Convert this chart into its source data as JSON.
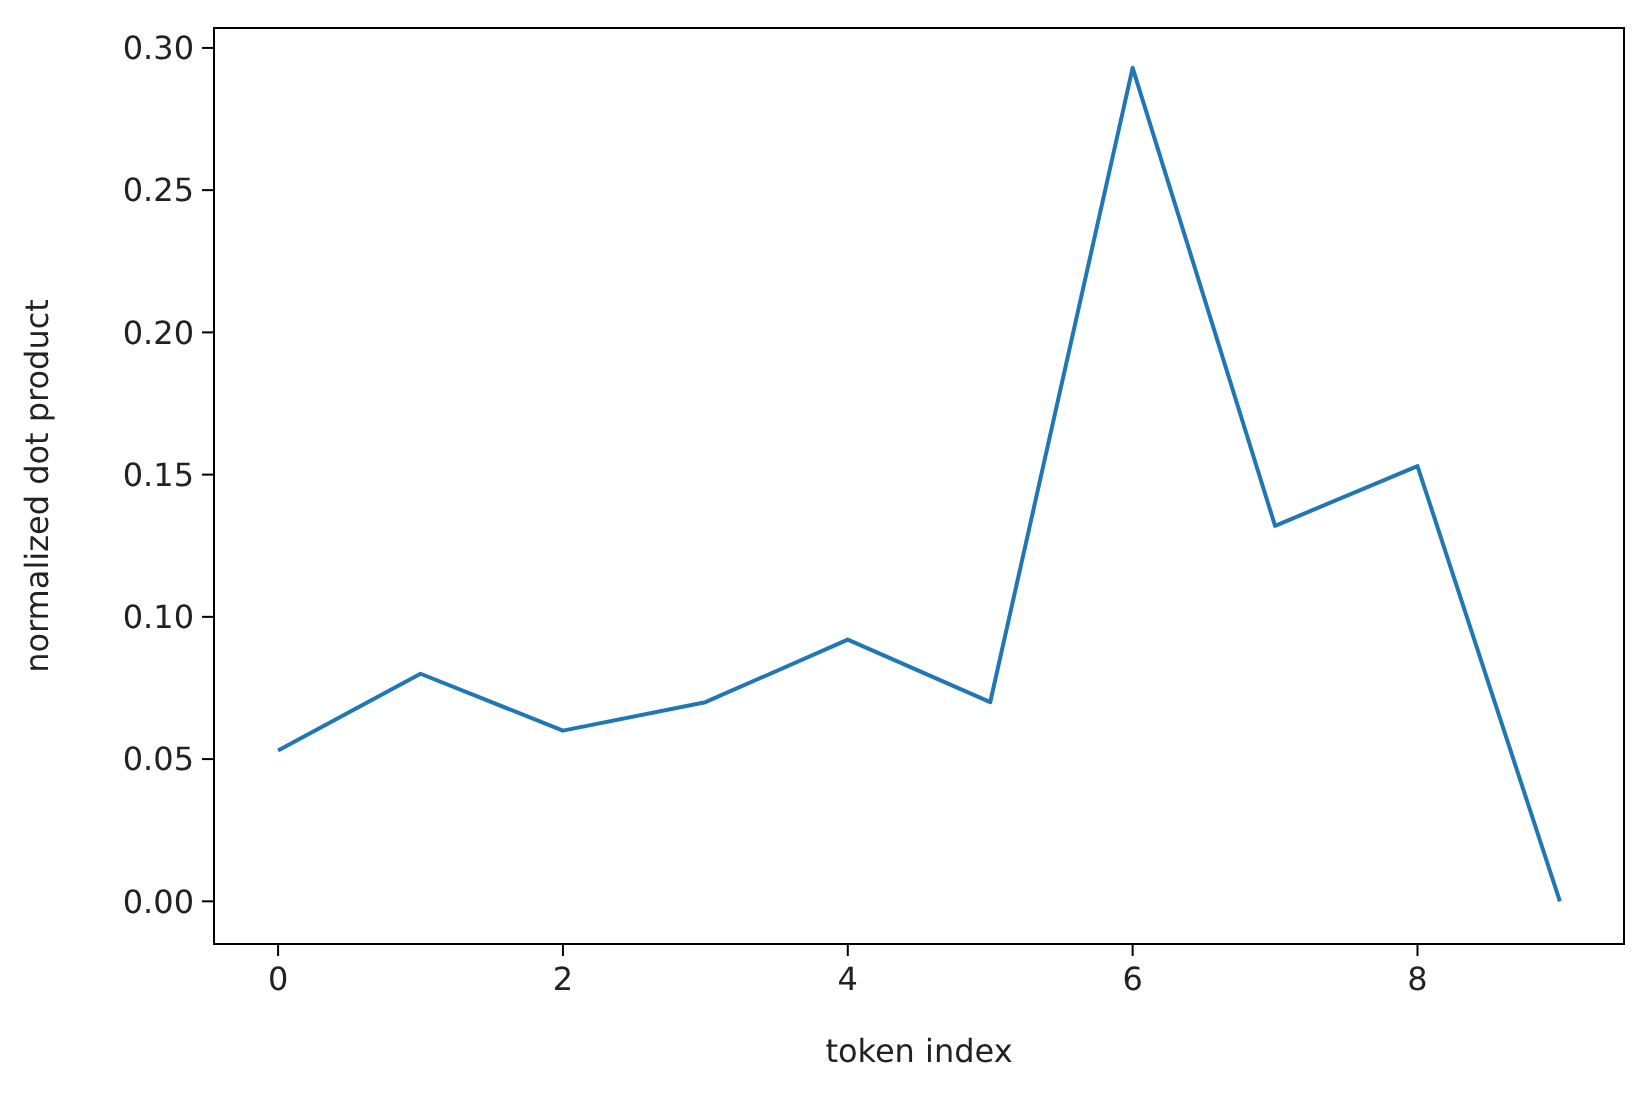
{
  "chart_data": {
    "type": "line",
    "xlabel": "token index",
    "ylabel": "normalized dot product",
    "x": [
      0,
      1,
      2,
      3,
      4,
      5,
      6,
      7,
      8,
      9
    ],
    "series": [
      {
        "color": "#1f77b4",
        "values": [
          0.053,
          0.08,
          0.06,
          0.07,
          0.092,
          0.07,
          0.293,
          0.132,
          0.153,
          0.0
        ]
      }
    ],
    "xlim": [
      -0.45,
      9.45
    ],
    "ylim": [
      -0.015,
      0.307
    ],
    "xticks": [
      0,
      2,
      4,
      6,
      8
    ],
    "yticks": [
      {
        "value": 0,
        "label": "0.00"
      },
      {
        "value": 0.05,
        "label": "0.05"
      },
      {
        "value": 0.1,
        "label": "0.10"
      },
      {
        "value": 0.15,
        "label": "0.15"
      },
      {
        "value": 0.2,
        "label": "0.20"
      },
      {
        "value": 0.25,
        "label": "0.25"
      },
      {
        "value": 0.3,
        "label": "0.30"
      }
    ],
    "grid": false,
    "marker": "none",
    "line_style": "solid"
  }
}
